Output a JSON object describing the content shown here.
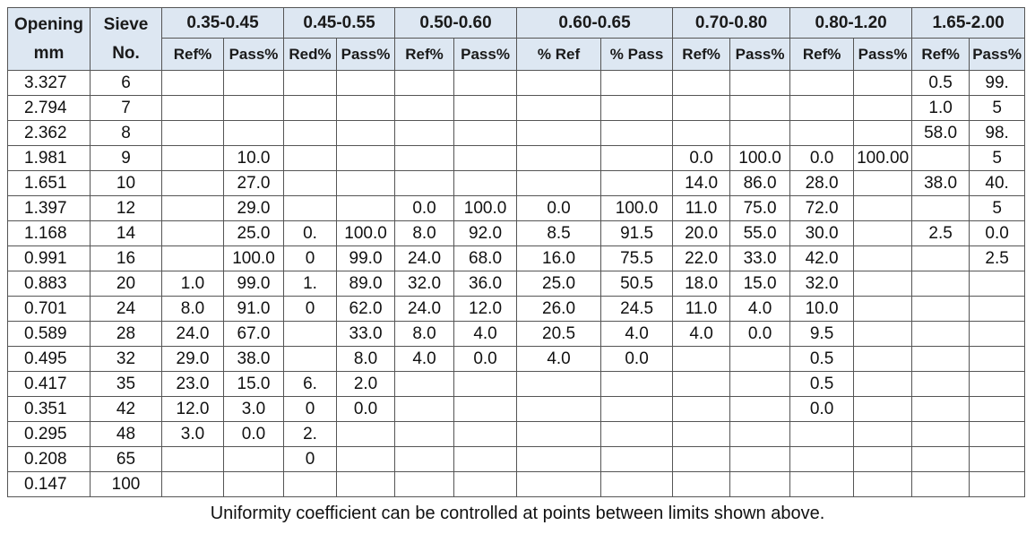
{
  "header": {
    "opening": [
      "Opening",
      "mm"
    ],
    "sieve": [
      "Sieve",
      "No."
    ],
    "groups": [
      {
        "label": "0.35-0.45",
        "sub": [
          "Ref%",
          "Pass%"
        ]
      },
      {
        "label": "0.45-0.55",
        "sub": [
          "Red%",
          "Pass%"
        ]
      },
      {
        "label": "0.50-0.60",
        "sub": [
          "Ref%",
          "Pass%"
        ]
      },
      {
        "label": "0.60-0.65",
        "sub": [
          "% Ref",
          "% Pass"
        ]
      },
      {
        "label": "0.70-0.80",
        "sub": [
          "Ref%",
          "Pass%"
        ]
      },
      {
        "label": "0.80-1.20",
        "sub": [
          "Ref%",
          "Pass%"
        ]
      },
      {
        "label": "1.65-2.00",
        "sub": [
          "Ref%",
          "Pass%"
        ]
      }
    ]
  },
  "rows": [
    [
      "3.327",
      "6",
      null,
      null,
      null,
      null,
      null,
      null,
      null,
      null,
      null,
      null,
      null,
      null,
      "0.5",
      "99."
    ],
    [
      "2.794",
      "7",
      null,
      null,
      null,
      null,
      null,
      null,
      null,
      null,
      null,
      null,
      null,
      null,
      "1.0",
      "5"
    ],
    [
      "2.362",
      "8",
      null,
      null,
      null,
      null,
      null,
      null,
      null,
      null,
      null,
      null,
      null,
      null,
      "58.0",
      "98."
    ],
    [
      "1.981",
      "9",
      null,
      "10.0",
      null,
      null,
      null,
      null,
      null,
      null,
      "0.0",
      "100.0",
      "0.0",
      "100.00",
      null,
      "5"
    ],
    [
      "1.651",
      "10",
      null,
      "27.0",
      null,
      null,
      null,
      null,
      null,
      null,
      "14.0",
      "86.0",
      "28.0",
      null,
      "38.0",
      "40."
    ],
    [
      "1.397",
      "12",
      null,
      "29.0",
      null,
      null,
      "0.0",
      "100.0",
      "0.0",
      "100.0",
      "11.0",
      "75.0",
      "72.0",
      null,
      null,
      "5"
    ],
    [
      "1.168",
      "14",
      null,
      "25.0",
      "0.",
      "100.0",
      "8.0",
      "92.0",
      "8.5",
      "91.5",
      "20.0",
      "55.0",
      "30.0",
      null,
      "2.5",
      "0.0"
    ],
    [
      "0.991",
      "16",
      null,
      "100.0",
      "0",
      "99.0",
      "24.0",
      "68.0",
      "16.0",
      "75.5",
      "22.0",
      "33.0",
      "42.0",
      null,
      null,
      "2.5"
    ],
    [
      "0.883",
      "20",
      "1.0",
      "99.0",
      "1.",
      "89.0",
      "32.0",
      "36.0",
      "25.0",
      "50.5",
      "18.0",
      "15.0",
      "32.0",
      null,
      null,
      null
    ],
    [
      "0.701",
      "24",
      "8.0",
      "91.0",
      "0",
      "62.0",
      "24.0",
      "12.0",
      "26.0",
      "24.5",
      "11.0",
      "4.0",
      "10.0",
      null,
      null,
      null
    ],
    [
      "0.589",
      "28",
      "24.0",
      "67.0",
      null,
      "33.0",
      "8.0",
      "4.0",
      "20.5",
      "4.0",
      "4.0",
      "0.0",
      "9.5",
      null,
      null,
      null
    ],
    [
      "0.495",
      "32",
      "29.0",
      "38.0",
      null,
      "8.0",
      "4.0",
      "0.0",
      "4.0",
      "0.0",
      null,
      null,
      "0.5",
      null,
      null,
      null
    ],
    [
      "0.417",
      "35",
      "23.0",
      "15.0",
      "6.",
      "2.0",
      null,
      null,
      null,
      null,
      null,
      null,
      "0.5",
      null,
      null,
      null
    ],
    [
      "0.351",
      "42",
      "12.0",
      "3.0",
      "0",
      "0.0",
      null,
      null,
      null,
      null,
      null,
      null,
      "0.0",
      null,
      null,
      null
    ],
    [
      "0.295",
      "48",
      "3.0",
      "0.0",
      "2.",
      null,
      null,
      null,
      null,
      null,
      null,
      null,
      null,
      null,
      null,
      null
    ],
    [
      "0.208",
      "65",
      null,
      null,
      "0",
      null,
      null,
      null,
      null,
      null,
      null,
      null,
      null,
      null,
      null,
      null
    ],
    [
      "0.147",
      "100",
      null,
      null,
      null,
      null,
      null,
      null,
      null,
      null,
      null,
      null,
      null,
      null,
      null,
      null
    ]
  ],
  "footer": "Uniformity coefficient can be controlled at points between limits shown above."
}
